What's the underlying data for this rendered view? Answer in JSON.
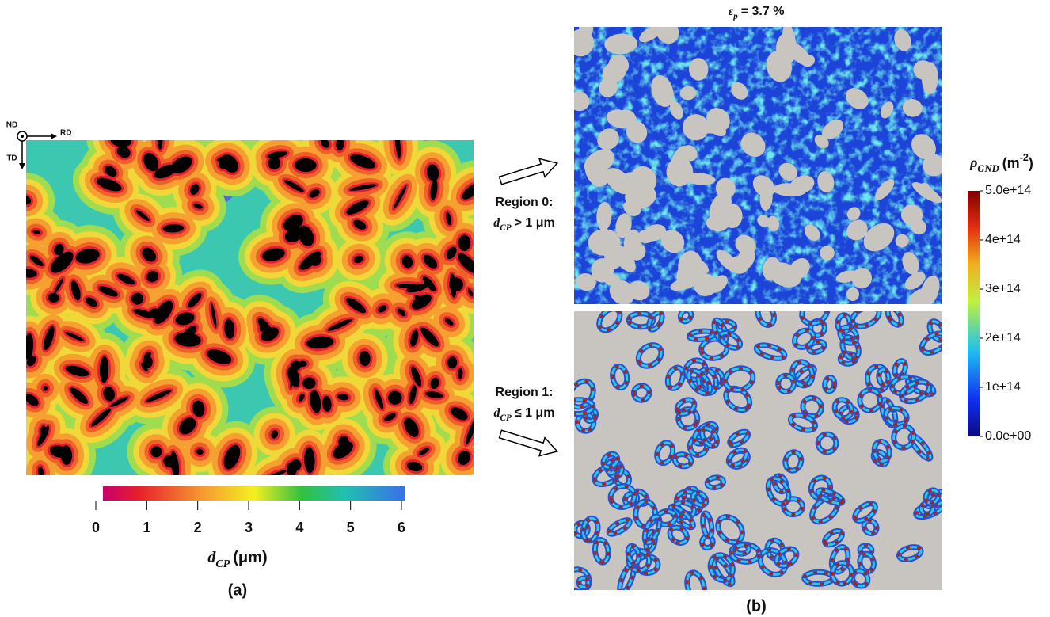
{
  "panel_a": {
    "orientation": {
      "nd": "ND",
      "rd": "RD",
      "td": "TD"
    },
    "colorbar": {
      "lim": [
        0,
        6
      ],
      "ticks": [
        0,
        1,
        2,
        3,
        4,
        5,
        6
      ],
      "label": {
        "symbol": "d",
        "subscript": "CP",
        "unit": "(μm)"
      }
    },
    "caption": "(a)"
  },
  "panel_b": {
    "strain": {
      "symbol": "ε",
      "subscript": "p",
      "text": "= 3.7 %"
    },
    "regions": [
      {
        "name": "Region 0:",
        "symbol": "d",
        "subscript": "CP",
        "condition": "> 1 μm"
      },
      {
        "name": "Region 1:",
        "symbol": "d",
        "subscript": "CP",
        "condition": "≤ 1 μm"
      }
    ],
    "colorbar": {
      "lim": [
        0,
        500000000000000
      ],
      "ticks": [
        {
          "value": 0,
          "label": "0.0e+00"
        },
        {
          "value": 100000000000000,
          "label": "1e+14"
        },
        {
          "value": 200000000000000,
          "label": "2e+14"
        },
        {
          "value": 300000000000000,
          "label": "3e+14"
        },
        {
          "value": 400000000000000,
          "label": "4e+14"
        },
        {
          "value": 500000000000000,
          "label": "5.0e+14"
        }
      ],
      "label": {
        "symbol": "ρ",
        "subscript": "GND",
        "unit": "(m",
        "superscript": "-2",
        "close": ")"
      }
    },
    "caption": "(b)"
  }
}
